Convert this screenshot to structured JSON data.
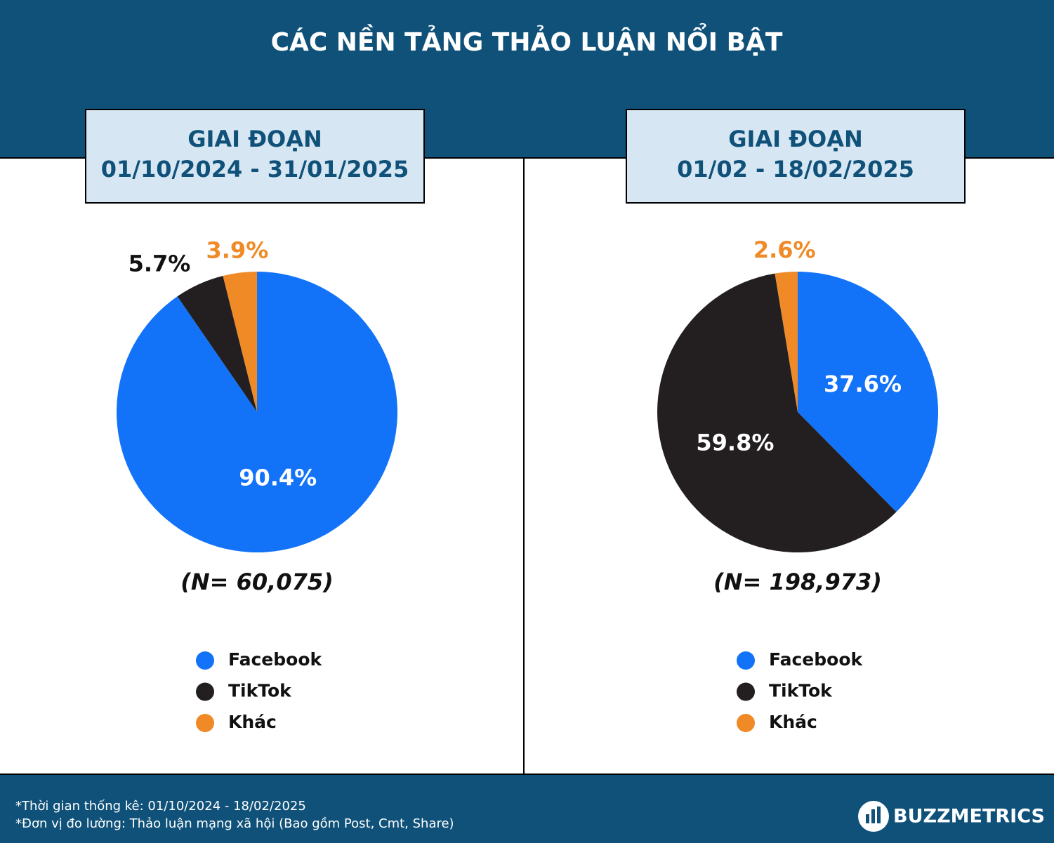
{
  "title": "CÁC NỀN TẢNG THẢO LUẬN NỔI BẬT",
  "chart_data": [
    {
      "type": "pie",
      "title": "GIAI ĐOẠN",
      "subtitle": "01/10/2024 - 31/01/2025",
      "categories": [
        "Facebook",
        "TikTok",
        "Khác"
      ],
      "values": [
        90.4,
        5.7,
        3.9
      ],
      "value_labels": [
        "90.4%",
        "5.7%",
        "3.9%"
      ],
      "colors": [
        "#1273f8",
        "#231f20",
        "#ef8a26"
      ],
      "note": "(N= 60,075)"
    },
    {
      "type": "pie",
      "title": "GIAI ĐOẠN",
      "subtitle": "01/02 - 18/02/2025",
      "categories": [
        "Facebook",
        "TikTok",
        "Khác"
      ],
      "values": [
        37.6,
        59.8,
        2.6
      ],
      "value_labels": [
        "37.6%",
        "59.8%",
        "2.6%"
      ],
      "colors": [
        "#1273f8",
        "#231f20",
        "#ef8a26"
      ],
      "note": "(N= 198,973)"
    }
  ],
  "footer": {
    "notes": [
      "*Thời gian thống kê: 01/10/2024 - 18/02/2025",
      "*Đơn vị đo lường: Thảo luận mạng xã hội (Bao gồm Post, Cmt, Share)"
    ],
    "brand": "BUZZMETRICS"
  }
}
